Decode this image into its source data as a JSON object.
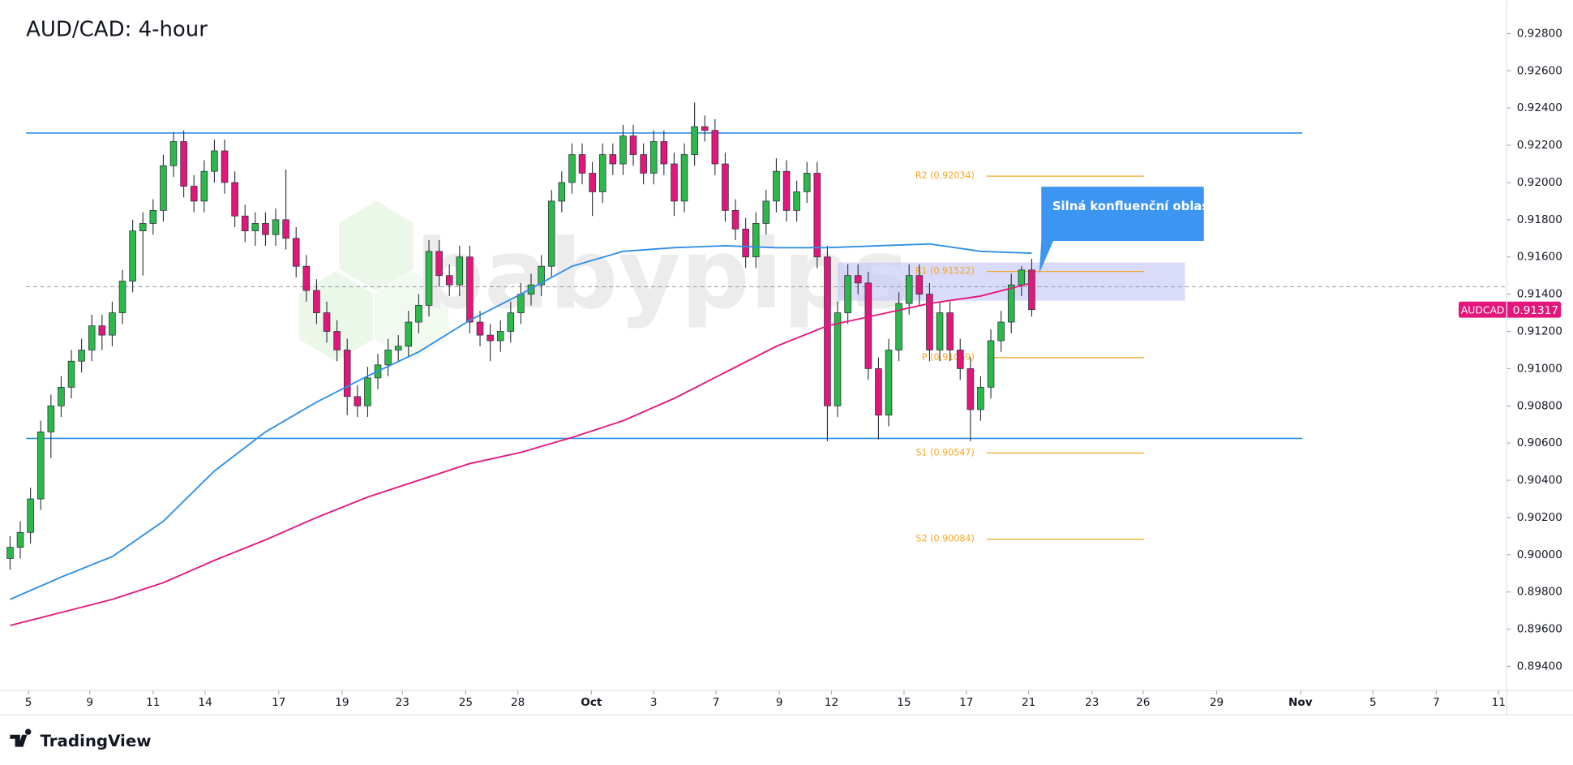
{
  "chart_data": {
    "type": "candlestick",
    "title": "AUD/CAD: 4-hour",
    "watermark": "babypips",
    "brand": "TradingView",
    "symbol": "AUDCAD",
    "last": 0.91317,
    "callout": "Silná konfluenční oblast",
    "up_color": "#2db84a",
    "down_color": "#e3177b",
    "ylim": [
      0.8927,
      0.9298
    ],
    "yticks": [
      {
        "value": 0.894,
        "label": "0.89400"
      },
      {
        "value": 0.896,
        "label": "0.89600"
      },
      {
        "value": 0.898,
        "label": "0.89800"
      },
      {
        "value": 0.9,
        "label": "0.90000"
      },
      {
        "value": 0.902,
        "label": "0.90200"
      },
      {
        "value": 0.904,
        "label": "0.90400"
      },
      {
        "value": 0.906,
        "label": "0.90600"
      },
      {
        "value": 0.908,
        "label": "0.90800"
      },
      {
        "value": 0.91,
        "label": "0.91000"
      },
      {
        "value": 0.912,
        "label": "0.91200"
      },
      {
        "value": 0.914,
        "label": "0.91400"
      },
      {
        "value": 0.916,
        "label": "0.91600"
      },
      {
        "value": 0.918,
        "label": "0.91800"
      },
      {
        "value": 0.92,
        "label": "0.92000"
      },
      {
        "value": 0.922,
        "label": "0.92200"
      },
      {
        "value": 0.924,
        "label": "0.92400"
      },
      {
        "value": 0.926,
        "label": "0.92600"
      },
      {
        "value": 0.928,
        "label": "0.92800"
      }
    ],
    "xlim": [
      -0.2,
      146.5
    ],
    "xticks": [
      {
        "value": 1.8,
        "label": "5"
      },
      {
        "value": 7.8,
        "label": "9"
      },
      {
        "value": 14.0,
        "label": "11"
      },
      {
        "value": 19.1,
        "label": "14"
      },
      {
        "value": 26.3,
        "label": "17"
      },
      {
        "value": 32.5,
        "label": "19"
      },
      {
        "value": 38.4,
        "label": "23"
      },
      {
        "value": 44.6,
        "label": "25"
      },
      {
        "value": 49.7,
        "label": "28"
      },
      {
        "value": 56.9,
        "label": "Oct"
      },
      {
        "value": 63.0,
        "label": "3"
      },
      {
        "value": 69.1,
        "label": "7"
      },
      {
        "value": 75.3,
        "label": "9"
      },
      {
        "value": 80.4,
        "label": "12"
      },
      {
        "value": 87.5,
        "label": "15"
      },
      {
        "value": 93.6,
        "label": "17"
      },
      {
        "value": 99.7,
        "label": "21"
      },
      {
        "value": 105.9,
        "label": "23"
      },
      {
        "value": 110.9,
        "label": "26"
      },
      {
        "value": 118.1,
        "label": "29"
      },
      {
        "value": 126.3,
        "label": "Nov"
      },
      {
        "value": 133.4,
        "label": "5"
      },
      {
        "value": 139.6,
        "label": "7"
      },
      {
        "value": 145.7,
        "label": "11"
      }
    ],
    "open": [
      0.8998,
      0.9004,
      0.9012,
      0.903,
      0.9066,
      0.908,
      0.909,
      0.9104,
      0.911,
      0.9123,
      0.9118,
      0.913,
      0.9147,
      0.9174,
      0.9178,
      0.9185,
      0.9209,
      0.9222,
      0.9198,
      0.919,
      0.9206,
      0.9217,
      0.92,
      0.9182,
      0.9174,
      0.9178,
      0.9172,
      0.918,
      0.917,
      0.9155,
      0.9142,
      0.913,
      0.912,
      0.911,
      0.9085,
      0.908,
      0.9095,
      0.9102,
      0.911,
      0.9112,
      0.9125,
      0.9134,
      0.9163,
      0.915,
      0.9145,
      0.916,
      0.9125,
      0.9118,
      0.9115,
      0.912,
      0.913,
      0.914,
      0.9145,
      0.9155,
      0.919,
      0.92,
      0.9215,
      0.9205,
      0.9195,
      0.9215,
      0.921,
      0.9225,
      0.9215,
      0.9205,
      0.9222,
      0.921,
      0.919,
      0.9215,
      0.923,
      0.9228,
      0.921,
      0.9185,
      0.9175,
      0.916,
      0.9178,
      0.919,
      0.9206,
      0.9185,
      0.9195,
      0.9205,
      0.916,
      0.908,
      0.913,
      0.915,
      0.9146,
      0.91,
      0.9075,
      0.911,
      0.9135,
      0.915,
      0.914,
      0.911,
      0.913,
      0.911,
      0.91,
      0.9078,
      0.909,
      0.9115,
      0.9125,
      0.9145,
      0.9153
    ],
    "high": [
      0.901,
      0.9018,
      0.9036,
      0.9072,
      0.9086,
      0.9096,
      0.911,
      0.9116,
      0.9129,
      0.9129,
      0.9136,
      0.9153,
      0.918,
      0.9184,
      0.9191,
      0.9215,
      0.9227,
      0.9228,
      0.9204,
      0.9212,
      0.9223,
      0.9223,
      0.9206,
      0.9188,
      0.9184,
      0.9184,
      0.9186,
      0.9207,
      0.9176,
      0.9161,
      0.9148,
      0.9136,
      0.9126,
      0.9116,
      0.9091,
      0.9101,
      0.9108,
      0.9116,
      0.9118,
      0.9131,
      0.914,
      0.9169,
      0.9169,
      0.9156,
      0.9166,
      0.9166,
      0.9131,
      0.9124,
      0.9126,
      0.9136,
      0.9146,
      0.9151,
      0.9161,
      0.9196,
      0.9206,
      0.9221,
      0.9221,
      0.9211,
      0.9221,
      0.9221,
      0.9231,
      0.9231,
      0.9221,
      0.9228,
      0.9228,
      0.9216,
      0.9221,
      0.9243,
      0.9236,
      0.9234,
      0.9216,
      0.9191,
      0.9181,
      0.9184,
      0.9196,
      0.9213,
      0.9212,
      0.9201,
      0.9211,
      0.9211,
      0.9166,
      0.9136,
      0.9156,
      0.9156,
      0.9152,
      0.9106,
      0.9116,
      0.9141,
      0.9156,
      0.9156,
      0.9146,
      0.9136,
      0.9136,
      0.9116,
      0.9106,
      0.9096,
      0.9121,
      0.9131,
      0.9151,
      0.9155,
      0.9159
    ],
    "low": [
      0.8992,
      0.8998,
      0.9006,
      0.9024,
      0.9052,
      0.9074,
      0.9084,
      0.9098,
      0.9104,
      0.911,
      0.9112,
      0.9124,
      0.9141,
      0.915,
      0.9172,
      0.9179,
      0.9203,
      0.9192,
      0.9184,
      0.9184,
      0.92,
      0.9194,
      0.9176,
      0.9168,
      0.9166,
      0.9166,
      0.9166,
      0.9164,
      0.9149,
      0.9136,
      0.9124,
      0.9114,
      0.9104,
      0.9075,
      0.9074,
      0.9074,
      0.9089,
      0.9096,
      0.9104,
      0.9106,
      0.9119,
      0.9128,
      0.9144,
      0.9139,
      0.9139,
      0.9119,
      0.9112,
      0.9104,
      0.9109,
      0.9114,
      0.9124,
      0.9134,
      0.9139,
      0.9149,
      0.9184,
      0.9194,
      0.9199,
      0.9182,
      0.9189,
      0.9204,
      0.9204,
      0.9209,
      0.9199,
      0.9199,
      0.9204,
      0.9182,
      0.9184,
      0.9209,
      0.9222,
      0.9204,
      0.9179,
      0.9169,
      0.9154,
      0.9154,
      0.9172,
      0.9184,
      0.9179,
      0.9179,
      0.9189,
      0.9154,
      0.9061,
      0.9074,
      0.9124,
      0.914,
      0.9094,
      0.9062,
      0.9069,
      0.9104,
      0.9129,
      0.9134,
      0.9104,
      0.9104,
      0.9104,
      0.9094,
      0.9061,
      0.9072,
      0.9084,
      0.9109,
      0.9119,
      0.9139,
      0.9128
    ],
    "close": [
      0.9004,
      0.9012,
      0.903,
      0.9066,
      0.908,
      0.909,
      0.9104,
      0.911,
      0.9123,
      0.9118,
      0.913,
      0.9147,
      0.9174,
      0.9178,
      0.9185,
      0.9209,
      0.9222,
      0.9198,
      0.919,
      0.9206,
      0.9217,
      0.92,
      0.9182,
      0.9174,
      0.9178,
      0.9172,
      0.918,
      0.917,
      0.9155,
      0.9142,
      0.913,
      0.912,
      0.911,
      0.9085,
      0.908,
      0.9095,
      0.9102,
      0.911,
      0.9112,
      0.9125,
      0.9134,
      0.9163,
      0.915,
      0.9145,
      0.916,
      0.9125,
      0.9118,
      0.9115,
      0.912,
      0.913,
      0.914,
      0.9145,
      0.9155,
      0.919,
      0.92,
      0.9215,
      0.9205,
      0.9195,
      0.9215,
      0.921,
      0.9225,
      0.9215,
      0.9205,
      0.9222,
      0.921,
      0.919,
      0.9215,
      0.923,
      0.9228,
      0.921,
      0.9185,
      0.9175,
      0.916,
      0.9178,
      0.919,
      0.9206,
      0.9185,
      0.9195,
      0.9205,
      0.916,
      0.908,
      0.913,
      0.915,
      0.9146,
      0.91,
      0.9075,
      0.911,
      0.9135,
      0.915,
      0.914,
      0.911,
      0.913,
      0.911,
      0.91,
      0.9078,
      0.909,
      0.9115,
      0.9125,
      0.9145,
      0.9153,
      0.91317
    ],
    "lines": [
      {
        "color": "#2f8fe6",
        "x": [
          0,
          5,
          10,
          15,
          20,
          25,
          30,
          35,
          40,
          45,
          50,
          55,
          60,
          65,
          70,
          75,
          80,
          85,
          90,
          95,
          100
        ],
        "values": [
          0.8976,
          0.8988,
          0.8999,
          0.9018,
          0.9045,
          0.9066,
          0.9082,
          0.9096,
          0.9109,
          0.9126,
          0.914,
          0.9155,
          0.9163,
          0.9165,
          0.9166,
          0.9165,
          0.9165,
          0.9166,
          0.9167,
          0.9163,
          0.9162
        ]
      },
      {
        "color": "#e3177b",
        "x": [
          0,
          5,
          10,
          15,
          20,
          25,
          30,
          35,
          40,
          45,
          50,
          55,
          60,
          65,
          70,
          75,
          80,
          85,
          90,
          95,
          100
        ],
        "values": [
          0.8962,
          0.8969,
          0.8976,
          0.8985,
          0.8997,
          0.9008,
          0.902,
          0.9031,
          0.904,
          0.9049,
          0.9055,
          0.9063,
          0.9072,
          0.9084,
          0.9098,
          0.9112,
          0.9123,
          0.9129,
          0.9135,
          0.9139,
          0.9146
        ]
      }
    ],
    "hlines": [
      0.92266,
      0.90625
    ],
    "hline_color": "#2f8fe6",
    "dashed_line": 0.9144,
    "zone": [
      0.91365,
      0.9157
    ],
    "zone_color": "#c9ccf7",
    "level_color": "#f5a623",
    "levels": [
      {
        "label": "R2 (0.92034)",
        "value": 0.92034
      },
      {
        "label": "R1 (0.91522)",
        "value": 0.91522
      },
      {
        "label": "P (0.91059)",
        "value": 0.91059
      },
      {
        "label": "S1 (0.90547)",
        "value": 0.90547
      },
      {
        "label": "S2 (0.90084)",
        "value": 0.90084
      }
    ]
  }
}
